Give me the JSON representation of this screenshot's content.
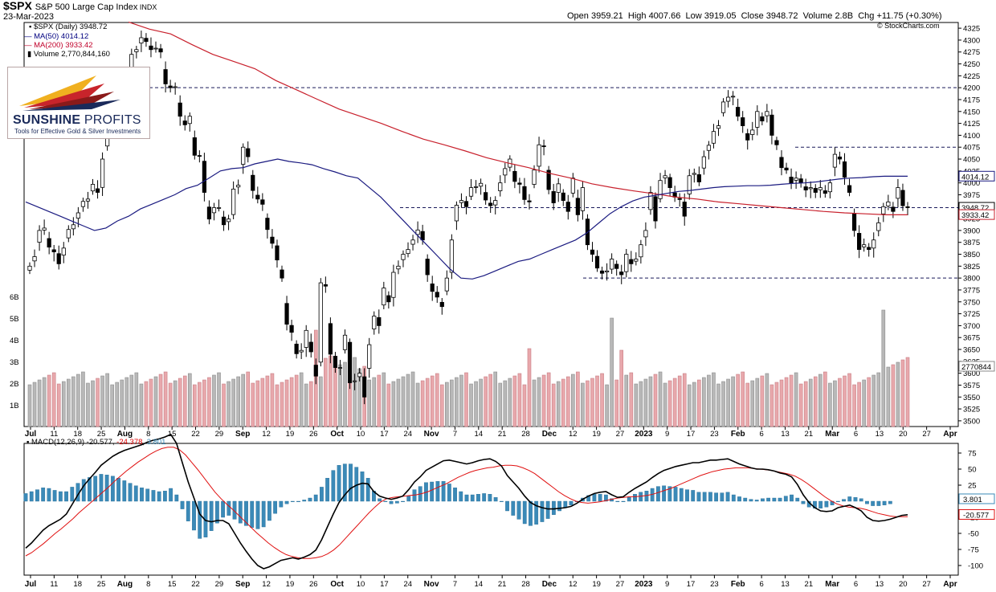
{
  "header": {
    "symbol": "$SPX",
    "name": "S&P 500 Large Cap Index",
    "exchange": "INDX",
    "date": "23-Mar-2023",
    "watermark": "© StockCharts.com",
    "quote": {
      "open_label": "Open",
      "open": "3959.21",
      "high_label": "High",
      "high": "4007.66",
      "low_label": "Low",
      "low": "3919.05",
      "close_label": "Close",
      "close": "3948.72",
      "volume_label": "Volume",
      "volume": "2.8B",
      "chg_label": "Chg",
      "chg": "+11.75 (+0.30%)"
    }
  },
  "legend": {
    "price": "$SPX (Daily) 3948.72",
    "ma50": "MA(50) 4014.12",
    "ma200": "MA(200) 3933.42",
    "volume": "Volume 2,770,844,160"
  },
  "logo": {
    "name_bold": "SUNSHINE",
    "name_light": " PROFITS",
    "tagline": "Tools for Effective Gold & Silver Investments"
  },
  "macd_legend": {
    "label": "MACD(12,26,9)",
    "macd": "-20.577",
    "signal": "-24.378",
    "hist": "3.801"
  },
  "chart_data": [
    {
      "type": "candlestick",
      "title": "$SPX S&P 500 Large Cap Index",
      "x_axis_labels": [
        "Jul",
        "11",
        "18",
        "25",
        "Aug",
        "8",
        "15",
        "22",
        "29",
        "Sep",
        "12",
        "19",
        "26",
        "Oct",
        "10",
        "17",
        "24",
        "Nov",
        "7",
        "14",
        "21",
        "28",
        "Dec",
        "12",
        "19",
        "27",
        "2023",
        "9",
        "17",
        "23",
        "Feb",
        "6",
        "13",
        "21",
        "Mar",
        "6",
        "13",
        "20",
        "27",
        "Apr"
      ],
      "y_ticks": [
        3500,
        3525,
        3550,
        3575,
        3600,
        3625,
        3650,
        3675,
        3700,
        3725,
        3750,
        3775,
        3800,
        3825,
        3850,
        3875,
        3900,
        3925,
        3950,
        3975,
        4000,
        4025,
        4050,
        4075,
        4100,
        4125,
        4150,
        4175,
        4200,
        4225,
        4250,
        4275,
        4300,
        4325
      ],
      "ylim": [
        3488,
        4337
      ],
      "last_value_labels": {
        "ma50": "4014.12",
        "close": "3948.72",
        "ma200": "3933.42",
        "volume": "2770844"
      },
      "closes": [
        3825,
        3845,
        3900,
        3905,
        3865,
        3855,
        3830,
        3863,
        3902,
        3912,
        3937,
        3961,
        3966,
        3997,
        3980,
        4050,
        4100,
        4140,
        4152,
        4165,
        4207,
        4270,
        4280,
        4305,
        4297,
        4280,
        4283,
        4275,
        4208,
        4200,
        4202,
        4140,
        4122,
        4140,
        4058,
        4057,
        3980,
        3924,
        3948,
        3948,
        3912,
        3924,
        3987,
        3995,
        4075,
        4055,
        3984,
        3966,
        3955,
        3902,
        3873,
        3838,
        3800,
        3703,
        3686,
        3641,
        3648,
        3690,
        3645,
        3594,
        3790,
        3783,
        3640,
        3612,
        3612,
        3680,
        3580,
        3584,
        3600,
        3550,
        3660,
        3720,
        3700,
        3779,
        3750,
        3812,
        3825,
        3850,
        3860,
        3880,
        3901,
        3880,
        3807,
        3772,
        3760,
        3740,
        3800,
        3880,
        3953,
        3963,
        3950,
        3990,
        3992,
        3999,
        3964,
        3952,
        3963,
        4000,
        4030,
        4050,
        4003,
        3997,
        3965,
        3960,
        4027,
        4080,
        4076,
        3986,
        3958,
        3998,
        3963,
        3940,
        4010,
        3933,
        3990,
        3870,
        3850,
        3821,
        3810,
        3815,
        3840,
        3820,
        3807,
        3850,
        3830,
        3840,
        3870,
        3900,
        3980,
        3920,
        4005,
        4015,
        3990,
        3970,
        3965,
        3930,
        4015,
        4020,
        4002,
        4055,
        4079,
        4108,
        4120,
        4170,
        4180,
        4182,
        4140,
        4120,
        4090,
        4111,
        4150,
        4130,
        4150,
        4100,
        4080,
        4032,
        4027,
        4000,
        4010,
        4000,
        3985,
        3990,
        3980,
        3990,
        3978,
        4000,
        4060,
        4050,
        4012,
        3980,
        3900,
        3860,
        3870,
        3860,
        3880,
        3916,
        3950,
        3960,
        3940,
        3990,
        3952,
        3948
      ],
      "ma50": [
        3960,
        3950,
        3940,
        3930,
        3920,
        3910,
        3900,
        3905,
        3920,
        3930,
        3945,
        3955,
        3965,
        3975,
        3988,
        3995,
        4010,
        4025,
        4030,
        4032,
        4040,
        4045,
        4050,
        4045,
        4042,
        4038,
        4030,
        4023,
        4015,
        4010,
        3990,
        3970,
        3945,
        3920,
        3895,
        3870,
        3845,
        3820,
        3800,
        3798,
        3805,
        3815,
        3825,
        3835,
        3840,
        3850,
        3860,
        3870,
        3880,
        3895,
        3915,
        3935,
        3950,
        3962,
        3970,
        3974,
        3978,
        3982,
        3984,
        3987,
        3990,
        3992,
        3993,
        3994,
        3994,
        3995,
        3997,
        3999,
        4000,
        4002,
        4005,
        4008,
        4010,
        4011,
        4013,
        4014,
        4014,
        4014
      ],
      "ma200": [
        4338,
        4323,
        4313,
        4291,
        4270,
        4255,
        4240,
        4215,
        4195,
        4175,
        4155,
        4140,
        4125,
        4108,
        4092,
        4080,
        4067,
        4053,
        4042,
        4032,
        4020,
        4010,
        3998,
        3990,
        3983,
        3977,
        3970,
        3966,
        3960,
        3956,
        3952,
        3948,
        3944,
        3940,
        3937,
        3935,
        3933,
        3933
      ],
      "volume_ylabels": [
        "1B",
        "2B",
        "3B",
        "4B",
        "5B",
        "6B"
      ]
    },
    {
      "type": "line",
      "title": "MACD(12,26,9)",
      "y_ticks": [
        75,
        50,
        25,
        0,
        -25,
        -50,
        -75,
        -100
      ],
      "ylim": [
        -115,
        90
      ],
      "last_value_labels": {
        "hist": "3.801",
        "macd": "-20.577",
        "signal": "-24.378"
      },
      "series": [
        {
          "name": "MACD",
          "values": [
            -73,
            -65,
            -55,
            -45,
            -38,
            -33,
            -28,
            -20,
            -5,
            10,
            24,
            35,
            45,
            56,
            63,
            70,
            75,
            79,
            82,
            85,
            88,
            92,
            95,
            97,
            100,
            104,
            90,
            60,
            30,
            5,
            -20,
            -30,
            -32,
            -30,
            -30,
            -35,
            -50,
            -65,
            -78,
            -90,
            -100,
            -105,
            -102,
            -97,
            -92,
            -90,
            -88,
            -90,
            -87,
            -83,
            -76,
            -60,
            -40,
            -20,
            -2,
            10,
            20,
            25,
            28,
            27,
            15,
            8,
            5,
            3,
            5,
            8,
            18,
            30,
            38,
            48,
            53,
            58,
            63,
            64,
            62,
            60,
            58,
            60,
            63,
            65,
            66,
            62,
            55,
            40,
            30,
            20,
            8,
            -2,
            -7,
            -10,
            -12,
            -12,
            -11,
            -10,
            -8,
            -3,
            3,
            8,
            12,
            14,
            15,
            10,
            6,
            7,
            14,
            20,
            25,
            30,
            37,
            43,
            48,
            51,
            54,
            56,
            58,
            60,
            60,
            62,
            64,
            64,
            65,
            66,
            62,
            58,
            55,
            52,
            50,
            50,
            49,
            47,
            44,
            42,
            38,
            26,
            10,
            -2,
            -10,
            -15,
            -16,
            -15,
            -10,
            -8,
            -6,
            -10,
            -15,
            -25,
            -30,
            -31,
            -30,
            -28,
            -25,
            -22,
            -21
          ]
        },
        {
          "name": "Signal",
          "values": [
            -85,
            -80,
            -73,
            -66,
            -58,
            -50,
            -43,
            -35,
            -27,
            -18,
            -10,
            -2,
            6,
            14,
            22,
            31,
            39,
            47,
            54,
            61,
            67,
            73,
            78,
            82,
            84,
            84,
            80,
            72,
            61,
            50,
            38,
            26,
            14,
            4,
            -5,
            -13,
            -22,
            -31,
            -40,
            -49,
            -57,
            -65,
            -72,
            -78,
            -83,
            -86,
            -88,
            -89,
            -89,
            -88,
            -86,
            -82,
            -76,
            -68,
            -58,
            -48,
            -38,
            -28,
            -18,
            -9,
            -1,
            4,
            6,
            7,
            8,
            9,
            10,
            12,
            15,
            19,
            23,
            27,
            32,
            37,
            41,
            45,
            48,
            50,
            52,
            53,
            55,
            56,
            56,
            55,
            52,
            48,
            43,
            36,
            29,
            22,
            15,
            9,
            4,
            0,
            -2,
            -3,
            -2,
            -1,
            1,
            3,
            5,
            6,
            7,
            7,
            8,
            9,
            11,
            14,
            17,
            20,
            24,
            28,
            32,
            36,
            40,
            43,
            46,
            48,
            50,
            51,
            52,
            52,
            52,
            51,
            50,
            49,
            48,
            46,
            44,
            42,
            39,
            34,
            28,
            21,
            14,
            7,
            1,
            -4,
            -7,
            -9,
            -10,
            -11,
            -13,
            -16,
            -19,
            -21,
            -23,
            -24,
            -24,
            -24
          ]
        }
      ]
    }
  ]
}
